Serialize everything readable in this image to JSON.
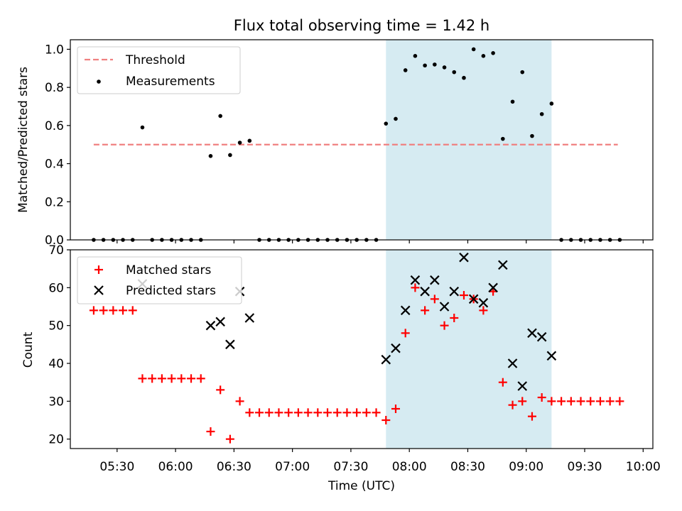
{
  "title": "Flux total observing time = 1.42 h",
  "xlabel": "Time (UTC)",
  "x_ticks": [
    "05:30",
    "06:00",
    "06:30",
    "07:00",
    "07:30",
    "08:00",
    "08:30",
    "09:00",
    "09:30",
    "10:00"
  ],
  "colors": {
    "threshold": "#f08080",
    "measurements": "#000000",
    "matched": "#ff0000",
    "predicted": "#000000",
    "highlight": "#add8e6"
  },
  "chart_data": [
    {
      "type": "scatter",
      "ylabel": "Matched/Predicted stars",
      "ylim": [
        0,
        1.05
      ],
      "xlim": [
        "05:06",
        "10:05"
      ],
      "y_ticks": [
        "0.0",
        "0.2",
        "0.4",
        "0.6",
        "0.8",
        "1.0"
      ],
      "highlight_span": [
        "07:48",
        "09:13"
      ],
      "legend": {
        "position": "top-left",
        "items": [
          "Threshold",
          "Measurements"
        ]
      },
      "threshold": {
        "name": "Threshold",
        "y": 0.5,
        "x_range": [
          "05:18",
          "09:47"
        ]
      },
      "series": [
        {
          "name": "Measurements",
          "x": [
            "05:18",
            "05:23",
            "05:28",
            "05:33",
            "05:38",
            "05:43",
            "05:48",
            "05:53",
            "05:58",
            "06:03",
            "06:08",
            "06:13",
            "06:18",
            "06:23",
            "06:28",
            "06:33",
            "06:38",
            "06:43",
            "06:48",
            "06:53",
            "06:58",
            "07:03",
            "07:08",
            "07:13",
            "07:18",
            "07:23",
            "07:28",
            "07:33",
            "07:38",
            "07:43",
            "07:48",
            "07:53",
            "07:58",
            "08:03",
            "08:08",
            "08:13",
            "08:18",
            "08:23",
            "08:28",
            "08:33",
            "08:38",
            "08:43",
            "08:48",
            "08:53",
            "08:58",
            "09:03",
            "09:08",
            "09:13",
            "09:18",
            "09:23",
            "09:28",
            "09:33",
            "09:38",
            "09:43",
            "09:48"
          ],
          "y": [
            0,
            0,
            0,
            0,
            0,
            0.59,
            0,
            0,
            0,
            0,
            0,
            0,
            0.44,
            0.65,
            0.445,
            0.51,
            0.52,
            0,
            0,
            0,
            0,
            0,
            0,
            0,
            0,
            0,
            0,
            0,
            0,
            0,
            0.61,
            0.635,
            0.89,
            0.965,
            0.915,
            0.92,
            0.905,
            0.88,
            0.85,
            1.0,
            0.965,
            0.98,
            0.53,
            0.725,
            0.88,
            0.545,
            0.66,
            0.715,
            0,
            0,
            0,
            0,
            0,
            0,
            0
          ]
        }
      ]
    },
    {
      "type": "scatter",
      "ylabel": "Count",
      "ylim": [
        17.5,
        70
      ],
      "xlim": [
        "05:06",
        "10:05"
      ],
      "y_ticks": [
        "20",
        "30",
        "40",
        "50",
        "60",
        "70"
      ],
      "highlight_span": [
        "07:48",
        "09:13"
      ],
      "legend": {
        "position": "top-left",
        "items": [
          "Matched stars",
          "Predicted stars"
        ]
      },
      "series": [
        {
          "name": "Matched stars",
          "marker": "+",
          "x": [
            "05:18",
            "05:23",
            "05:28",
            "05:33",
            "05:38",
            "05:43",
            "05:48",
            "05:53",
            "05:58",
            "06:03",
            "06:08",
            "06:13",
            "06:18",
            "06:23",
            "06:28",
            "06:33",
            "06:38",
            "06:43",
            "06:48",
            "06:53",
            "06:58",
            "07:03",
            "07:08",
            "07:13",
            "07:18",
            "07:23",
            "07:28",
            "07:33",
            "07:38",
            "07:43",
            "07:48",
            "07:53",
            "07:58",
            "08:03",
            "08:08",
            "08:13",
            "08:18",
            "08:23",
            "08:28",
            "08:33",
            "08:38",
            "08:43",
            "08:48",
            "08:53",
            "08:58",
            "09:03",
            "09:08",
            "09:13",
            "09:18",
            "09:23",
            "09:28",
            "09:33",
            "09:38",
            "09:43",
            "09:48"
          ],
          "y": [
            54,
            54,
            54,
            54,
            54,
            36,
            36,
            36,
            36,
            36,
            36,
            36,
            22,
            33,
            20,
            30,
            27,
            27,
            27,
            27,
            27,
            27,
            27,
            27,
            27,
            27,
            27,
            27,
            27,
            27,
            25,
            28,
            48,
            60,
            54,
            57,
            50,
            52,
            58,
            57,
            54,
            59,
            35,
            29,
            30,
            26,
            31,
            30,
            30,
            30,
            30,
            30,
            30,
            30,
            30
          ]
        },
        {
          "name": "Predicted stars",
          "marker": "x",
          "x": [
            "05:43",
            "06:18",
            "06:23",
            "06:28",
            "06:33",
            "06:38",
            "07:48",
            "07:53",
            "07:58",
            "08:03",
            "08:08",
            "08:13",
            "08:18",
            "08:23",
            "08:28",
            "08:33",
            "08:38",
            "08:43",
            "08:48",
            "08:53",
            "08:58",
            "09:03",
            "09:08",
            "09:13"
          ],
          "y": [
            61,
            50,
            51,
            45,
            59,
            52,
            41,
            44,
            54,
            62,
            59,
            62,
            55,
            59,
            68,
            57,
            56,
            60,
            66,
            40,
            34,
            48,
            47,
            42
          ]
        }
      ]
    }
  ]
}
